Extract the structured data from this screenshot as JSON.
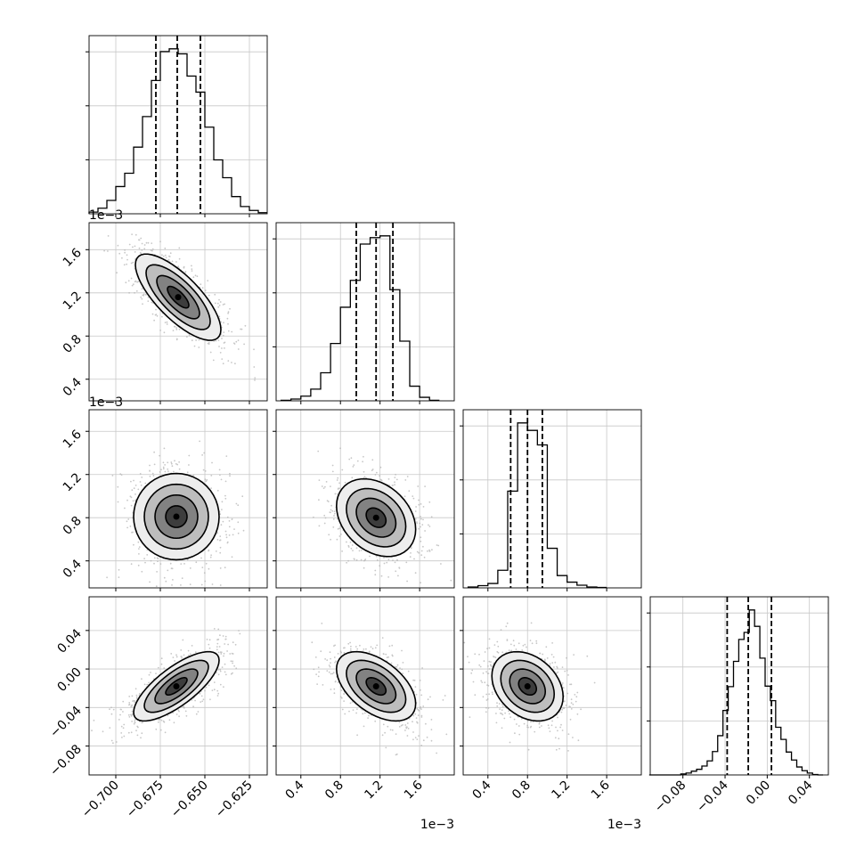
{
  "figure": {
    "type": "corner-plot",
    "parameters": 4,
    "offset_labels": [
      "1e−3",
      "1e−3",
      "1e−3",
      "1e−3"
    ]
  },
  "chart_data": [
    {
      "type": "histogram",
      "panel": "p0-marginal",
      "bin_centers": [
        -0.7125,
        -0.7075,
        -0.7025,
        -0.6975,
        -0.6925,
        -0.6875,
        -0.6825,
        -0.6775,
        -0.6725,
        -0.6675,
        -0.6625,
        -0.6575,
        -0.6525,
        -0.6475,
        -0.6425,
        -0.6375,
        -0.6325,
        -0.6275,
        -0.6225,
        -0.6175
      ],
      "counts": [
        3,
        10,
        24,
        49,
        73,
        120,
        175,
        240,
        292,
        297,
        288,
        248,
        219,
        156,
        97,
        65,
        31,
        13,
        6,
        2
      ],
      "quantiles": [
        -0.6775,
        -0.6655,
        -0.6525
      ],
      "xlim": [
        -0.715,
        -0.615
      ],
      "xticks": [
        "−0.700",
        "−0.675",
        "−0.650",
        "−0.625"
      ],
      "color": "#000000"
    },
    {
      "type": "histogram",
      "panel": "p1-marginal",
      "bin_centers": [
        0.25,
        0.35,
        0.45,
        0.55,
        0.65,
        0.75,
        0.85,
        0.95,
        1.05,
        1.15,
        1.25,
        1.35,
        1.45,
        1.55,
        1.65,
        1.75
      ],
      "counts": [
        1,
        3,
        8,
        20,
        48,
        98,
        160,
        206,
        268,
        279,
        282,
        190,
        102,
        25,
        6,
        1
      ],
      "quantiles": [
        0.96,
        1.16,
        1.33
      ],
      "xlim": [
        0.15,
        1.95
      ],
      "xticks": [
        "0.4",
        "0.8",
        "1.2",
        "1.6"
      ],
      "units": "1e−3"
    },
    {
      "type": "histogram",
      "panel": "p2-marginal",
      "bin_centers": [
        0.25,
        0.35,
        0.45,
        0.55,
        0.65,
        0.75,
        0.85,
        0.95,
        1.05,
        1.15,
        1.25,
        1.35,
        1.45,
        1.55
      ],
      "counts": [
        2,
        5,
        10,
        40,
        220,
        375,
        358,
        325,
        90,
        28,
        13,
        6,
        2,
        1
      ],
      "quantiles": [
        0.63,
        0.8,
        0.95
      ],
      "xlim": [
        0.15,
        1.95
      ],
      "xticks": [
        "0.4",
        "0.8",
        "1.2",
        "1.6"
      ],
      "units": "1e−3"
    },
    {
      "type": "histogram",
      "panel": "p3-marginal",
      "bin_centers": [
        -0.1095,
        -0.1045,
        -0.0995,
        -0.0945,
        -0.0895,
        -0.0845,
        -0.0795,
        -0.0745,
        -0.0695,
        -0.0645,
        -0.0595,
        -0.0545,
        -0.0495,
        -0.0445,
        -0.0395,
        -0.0345,
        -0.0295,
        -0.0245,
        -0.0195,
        -0.0145,
        -0.0095,
        -0.0045,
        0.0005,
        0.0055,
        0.0105,
        0.0155,
        0.0205,
        0.0255,
        0.0305,
        0.0355,
        0.0405,
        0.0455,
        0.0505
      ],
      "counts": [
        0,
        0,
        0,
        0,
        0,
        0,
        2,
        4,
        8,
        12,
        19,
        30,
        50,
        84,
        138,
        189,
        243,
        290,
        305,
        353,
        318,
        250,
        190,
        159,
        102,
        76,
        49,
        32,
        17,
        9,
        4,
        1,
        0
      ],
      "quantiles": [
        -0.038,
        -0.018,
        0.004
      ],
      "xlim": [
        -0.111,
        0.058
      ],
      "xticks": [
        "−0.08",
        "−0.04",
        "0.00",
        "0.04"
      ]
    },
    {
      "type": "scatter-density",
      "panel": "p1-vs-p0",
      "mean": [
        -0.665,
        1.16
      ],
      "sd": [
        0.012,
        0.2
      ],
      "corr": -0.75,
      "xlim": [
        -0.715,
        -0.615
      ],
      "ylim": [
        0.2,
        1.85
      ],
      "yticks": [
        "0.4",
        "0.8",
        "1.2",
        "1.6"
      ],
      "units": "1e−3",
      "contour_levels_sigma": [
        0.5,
        1.0,
        1.5,
        2.0
      ]
    },
    {
      "type": "scatter-density",
      "panel": "p2-vs-p0",
      "mean": [
        -0.666,
        0.81
      ],
      "sd": [
        0.012,
        0.2
      ],
      "corr": 0.0,
      "xlim": [
        -0.715,
        -0.615
      ],
      "ylim": [
        0.15,
        1.8
      ],
      "yticks": [
        "0.4",
        "0.8",
        "1.2",
        "1.6"
      ],
      "units": "1e−3",
      "contour_levels_sigma": [
        0.5,
        1.0,
        1.5,
        2.0
      ]
    },
    {
      "type": "scatter-density",
      "panel": "p2-vs-p1",
      "mean": [
        1.16,
        0.8
      ],
      "sd": [
        0.2,
        0.18
      ],
      "corr": -0.3,
      "xlim": [
        0.15,
        1.95
      ],
      "ylim": [
        0.15,
        1.8
      ],
      "contour_levels_sigma": [
        0.5,
        1.0,
        1.5,
        2.0
      ]
    },
    {
      "type": "scatter-density",
      "panel": "p3-vs-p0",
      "mean": [
        -0.666,
        -0.018
      ],
      "sd": [
        0.012,
        0.018
      ],
      "corr": 0.75,
      "xlim": [
        -0.715,
        -0.615
      ],
      "ylim": [
        -0.11,
        0.075
      ],
      "yticks": [
        "−0.08",
        "−0.04",
        "0.00",
        "0.04"
      ],
      "contour_levels_sigma": [
        0.5,
        1.0,
        1.5,
        2.0
      ]
    },
    {
      "type": "scatter-density",
      "panel": "p3-vs-p1",
      "mean": [
        1.16,
        -0.018
      ],
      "sd": [
        0.2,
        0.018
      ],
      "corr": -0.5,
      "xlim": [
        0.15,
        1.95
      ],
      "ylim": [
        -0.11,
        0.075
      ],
      "contour_levels_sigma": [
        0.5,
        1.0,
        1.5,
        2.0
      ]
    },
    {
      "type": "scatter-density",
      "panel": "p3-vs-p2",
      "mean": [
        0.8,
        -0.018
      ],
      "sd": [
        0.18,
        0.018
      ],
      "corr": -0.3,
      "xlim": [
        0.15,
        1.95
      ],
      "ylim": [
        -0.11,
        0.075
      ],
      "contour_levels_sigma": [
        0.5,
        1.0,
        1.5,
        2.0
      ]
    }
  ]
}
